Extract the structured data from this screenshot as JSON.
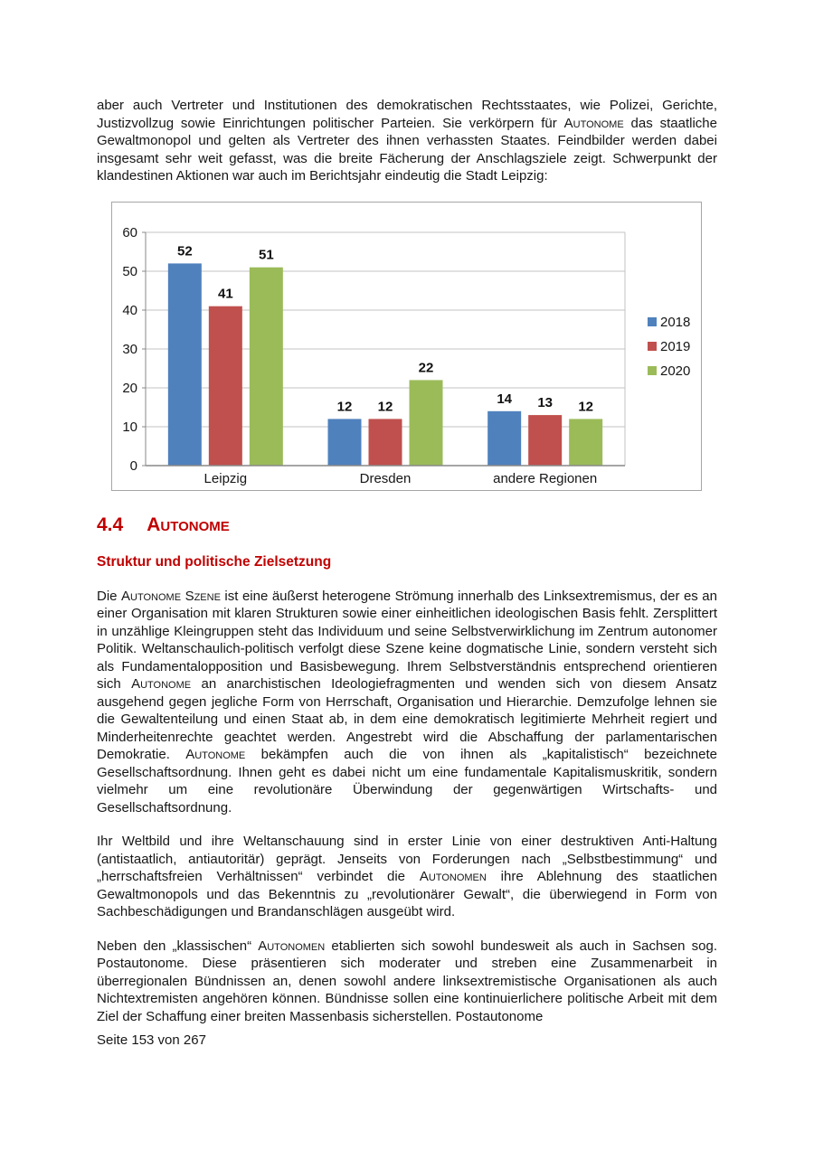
{
  "page": {
    "footer": "Seite 153 von 267",
    "accent_color": "#c00000"
  },
  "section": {
    "number": "4.4",
    "title": "Autonome",
    "subtitle": "Struktur und politische Zielsetzung"
  },
  "paragraphs": [
    [
      {
        "t": "aber auch Vertreter und Institutionen des demokratischen Rechtsstaates, wie Polizei, Gerichte, Justizvollzug sowie Einrichtungen politischer Parteien. Sie verkörpern für "
      },
      {
        "t": "Autonome",
        "sc": true
      },
      {
        "t": " das staatliche Gewaltmonopol und gelten als Vertreter des ihnen verhassten Staates. Feindbilder werden dabei insgesamt sehr weit gefasst, was die breite Fächerung der Anschlagsziele zeigt. Schwerpunkt der klandestinen Aktionen war auch im Berichtsjahr eindeutig die Stadt Leipzig:"
      }
    ],
    [
      {
        "t": "Die "
      },
      {
        "t": "Autonome Szene",
        "sc": true
      },
      {
        "t": " ist eine äußerst heterogene Strömung innerhalb des Linksextremismus, der es an einer Organisation mit klaren Strukturen sowie einer einheitlichen ideologischen Basis fehlt. Zersplittert in unzählige Kleingruppen steht das Individuum und seine Selbstverwirklichung im Zentrum autonomer Politik. Weltanschaulich-politisch verfolgt diese Szene keine dogmatische Linie, sondern versteht sich als Fundamentalopposition und Basisbewegung. Ihrem Selbstverständnis entsprechend orientieren sich "
      },
      {
        "t": "Autonome",
        "sc": true
      },
      {
        "t": " an anarchistischen Ideologiefragmenten und wenden sich von diesem Ansatz ausgehend gegen jegliche Form von Herrschaft, Organisation und Hierarchie. Demzufolge lehnen sie die Gewaltenteilung und einen Staat ab, in dem eine demokratisch legitimierte Mehrheit regiert und Minderheitenrechte geachtet werden. Angestrebt wird die Abschaffung der parlamentarischen Demokratie. "
      },
      {
        "t": "Autonome",
        "sc": true
      },
      {
        "t": " bekämpfen auch die von ihnen als „kapitalistisch“ bezeichnete Gesellschaftsordnung. Ihnen geht es dabei nicht um eine fundamentale Kapitalismuskritik, sondern vielmehr um eine revolutionäre Überwindung der gegenwärtigen Wirtschafts- und Gesellschaftsordnung."
      }
    ],
    [
      {
        "t": "Ihr Weltbild und ihre Weltanschauung sind in erster Linie von einer destruktiven Anti-Haltung (antistaatlich, antiautoritär) geprägt. Jenseits von Forderungen nach „Selbstbestimmung“ und „herrschaftsfreien Verhältnissen“ verbindet die "
      },
      {
        "t": "Autonomen",
        "sc": true
      },
      {
        "t": " ihre Ablehnung des staatlichen Gewaltmonopols und das Bekenntnis zu „revolutionärer Gewalt“, die überwiegend in Form von Sachbeschädigungen und Brandanschlägen ausgeübt wird."
      }
    ],
    [
      {
        "t": "Neben den „klassischen“ "
      },
      {
        "t": "Autonomen",
        "sc": true
      },
      {
        "t": " etablierten sich sowohl bundesweit als auch in Sachsen sog. Postautonome. Diese präsentieren sich moderater und streben eine Zusammenarbeit in überregionalen Bündnissen an, denen sowohl andere linksextremistische Organisationen als auch Nichtextremisten angehören können. Bündnisse sollen eine kontinuierlichere politische Arbeit mit dem Ziel der Schaffung einer breiten Massenbasis sicherstellen. Postautonome"
      }
    ]
  ],
  "chart_data": {
    "type": "bar",
    "title": "",
    "categories": [
      "Leipzig",
      "Dresden",
      "andere Regionen"
    ],
    "series": [
      {
        "name": "2018",
        "color": "#4f81bd",
        "values": [
          52,
          12,
          14
        ]
      },
      {
        "name": "2019",
        "color": "#c0504d",
        "values": [
          41,
          12,
          13
        ]
      },
      {
        "name": "2020",
        "color": "#9bbb59",
        "values": [
          51,
          22,
          12
        ]
      }
    ],
    "xlabel": "",
    "ylabel": "",
    "ylim": [
      0,
      60
    ],
    "ytick_step": 10,
    "grid": true,
    "data_labels": true,
    "legend_position": "right"
  }
}
